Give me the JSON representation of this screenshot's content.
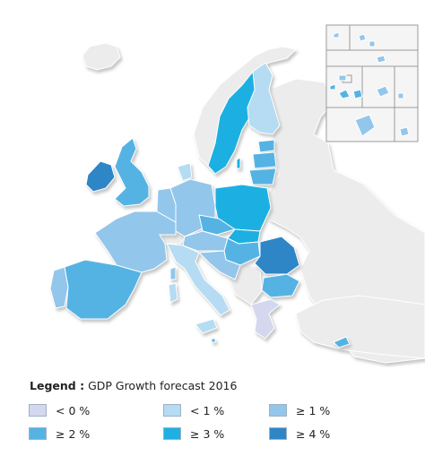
{
  "legend": {
    "title_bold": "Legend :",
    "title_text": "GDP Growth forecast 2016",
    "items": [
      {
        "label": "< 0 %",
        "color": "#d3d8ee"
      },
      {
        "label": "< 1 %",
        "color": "#b5dcf2"
      },
      {
        "label": "≥ 1 %",
        "color": "#93c6eb"
      },
      {
        "label": "≥ 2 %",
        "color": "#55b3e4"
      },
      {
        "label": "≥ 3 %",
        "color": "#1eb0e2"
      },
      {
        "label": "≥ 4 %",
        "color": "#2e86c7"
      }
    ]
  },
  "colors": {
    "non_eu": "#ececec",
    "sea": "#ffffff",
    "border": "#ffffff",
    "shadow": "#d9d9d9"
  }
}
